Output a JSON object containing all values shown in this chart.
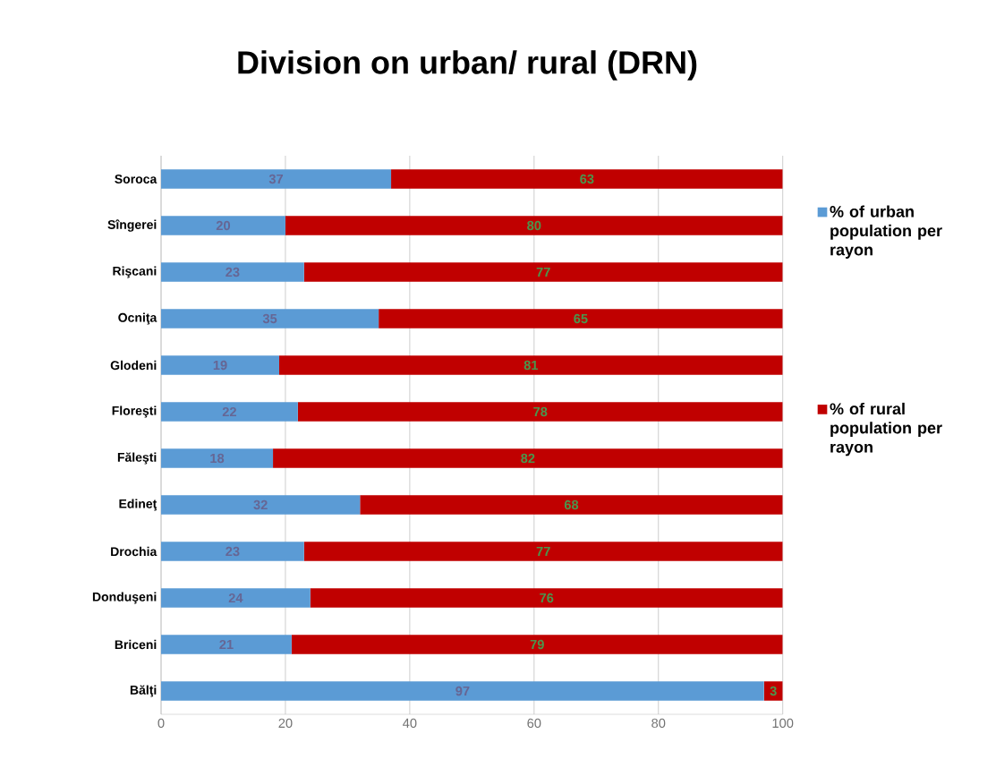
{
  "chart_data": {
    "type": "bar",
    "orientation": "horizontal",
    "stacked": true,
    "title": "Division on urban/ rural (DRN)",
    "categories": [
      "Soroca",
      "Sîngerei",
      "Rişcani",
      "Ocniţa",
      "Glodeni",
      "Floreşti",
      "Făleşti",
      "Edineţ",
      "Drochia",
      "Donduşeni",
      "Briceni",
      "Bălţi"
    ],
    "series": [
      {
        "name": "% of urban population per rayon",
        "color": "#5b9bd5",
        "values": [
          37,
          20,
          23,
          35,
          19,
          22,
          18,
          32,
          23,
          24,
          21,
          97
        ]
      },
      {
        "name": "% of rural population per rayon",
        "color": "#c00000",
        "values": [
          63,
          80,
          77,
          65,
          81,
          78,
          82,
          68,
          77,
          76,
          79,
          3
        ]
      }
    ],
    "xlim": [
      0,
      100
    ],
    "xticks": [
      0,
      20,
      40,
      60,
      80,
      100
    ],
    "grid": "x",
    "legend": "right",
    "data_labels": true
  }
}
